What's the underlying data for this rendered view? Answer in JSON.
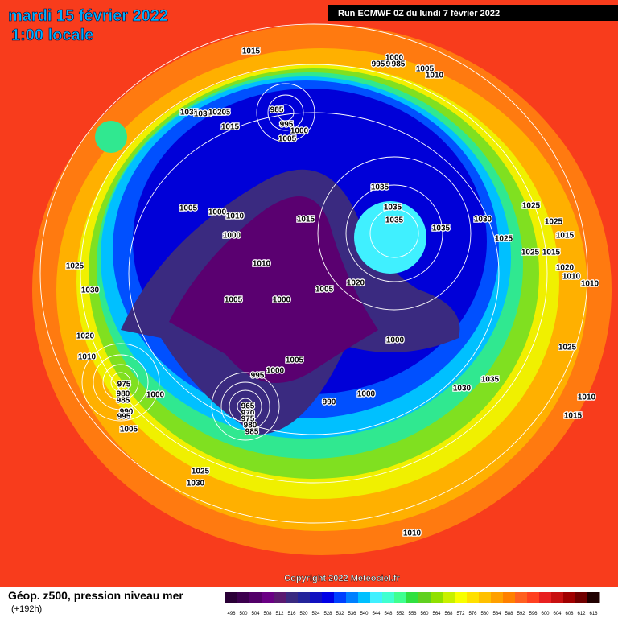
{
  "header": {
    "title": "mardi 15 février 2022",
    "subtitle": "1:00 locale",
    "run": "Run ECMWF 0Z du lundi 7 février 2022"
  },
  "copyright": "Copyright 2022 Meteociel.fr",
  "footer": {
    "label": "Géop. z500, pression niveau mer",
    "hours": "(+192h)"
  },
  "scale": {
    "labels": [
      496,
      500,
      504,
      508,
      512,
      516,
      520,
      524,
      528,
      532,
      536,
      540,
      544,
      548,
      552,
      556,
      560,
      564,
      568,
      572,
      576,
      580,
      584,
      588,
      592,
      596,
      600,
      604,
      608,
      612,
      616
    ],
    "colors": [
      "#2a0036",
      "#3c004e",
      "#520068",
      "#6a0084",
      "#5a1a70",
      "#3a2a80",
      "#24249a",
      "#1010c0",
      "#0000e6",
      "#0040ff",
      "#0080ff",
      "#00c0ff",
      "#40f0ff",
      "#40ffd0",
      "#40ff90",
      "#30e040",
      "#60d020",
      "#90e000",
      "#c8f000",
      "#f8ff00",
      "#ffe000",
      "#ffc000",
      "#ffa000",
      "#ff8000",
      "#ff6020",
      "#ff4020",
      "#e82020",
      "#c81010",
      "#a00000",
      "#700000",
      "#200000"
    ]
  },
  "pressure_labels": [
    "1015",
    "1000",
    "990",
    "995",
    "985",
    "1005",
    "1010",
    "1035",
    "1030",
    "1025",
    "1020",
    "1015",
    "985",
    "995",
    "1000",
    "1005",
    "1035",
    "1035",
    "1035",
    "1035",
    "1030",
    "1025",
    "1025",
    "1025",
    "1015",
    "1005",
    "1000",
    "1010",
    "1000",
    "1015",
    "1025",
    "1030",
    "1020",
    "1010",
    "1005",
    "1005",
    "1000",
    "1020",
    "1010",
    "1005",
    "1000",
    "1000",
    "975",
    "980",
    "985",
    "990",
    "995",
    "1000",
    "1005",
    "965",
    "970",
    "975",
    "980",
    "985",
    "995",
    "990",
    "1000",
    "1030",
    "1035",
    "1025",
    "1015",
    "1025",
    "1010",
    "1015",
    "1025",
    "1030",
    "1020",
    "1010",
    "1010",
    "1010"
  ]
}
